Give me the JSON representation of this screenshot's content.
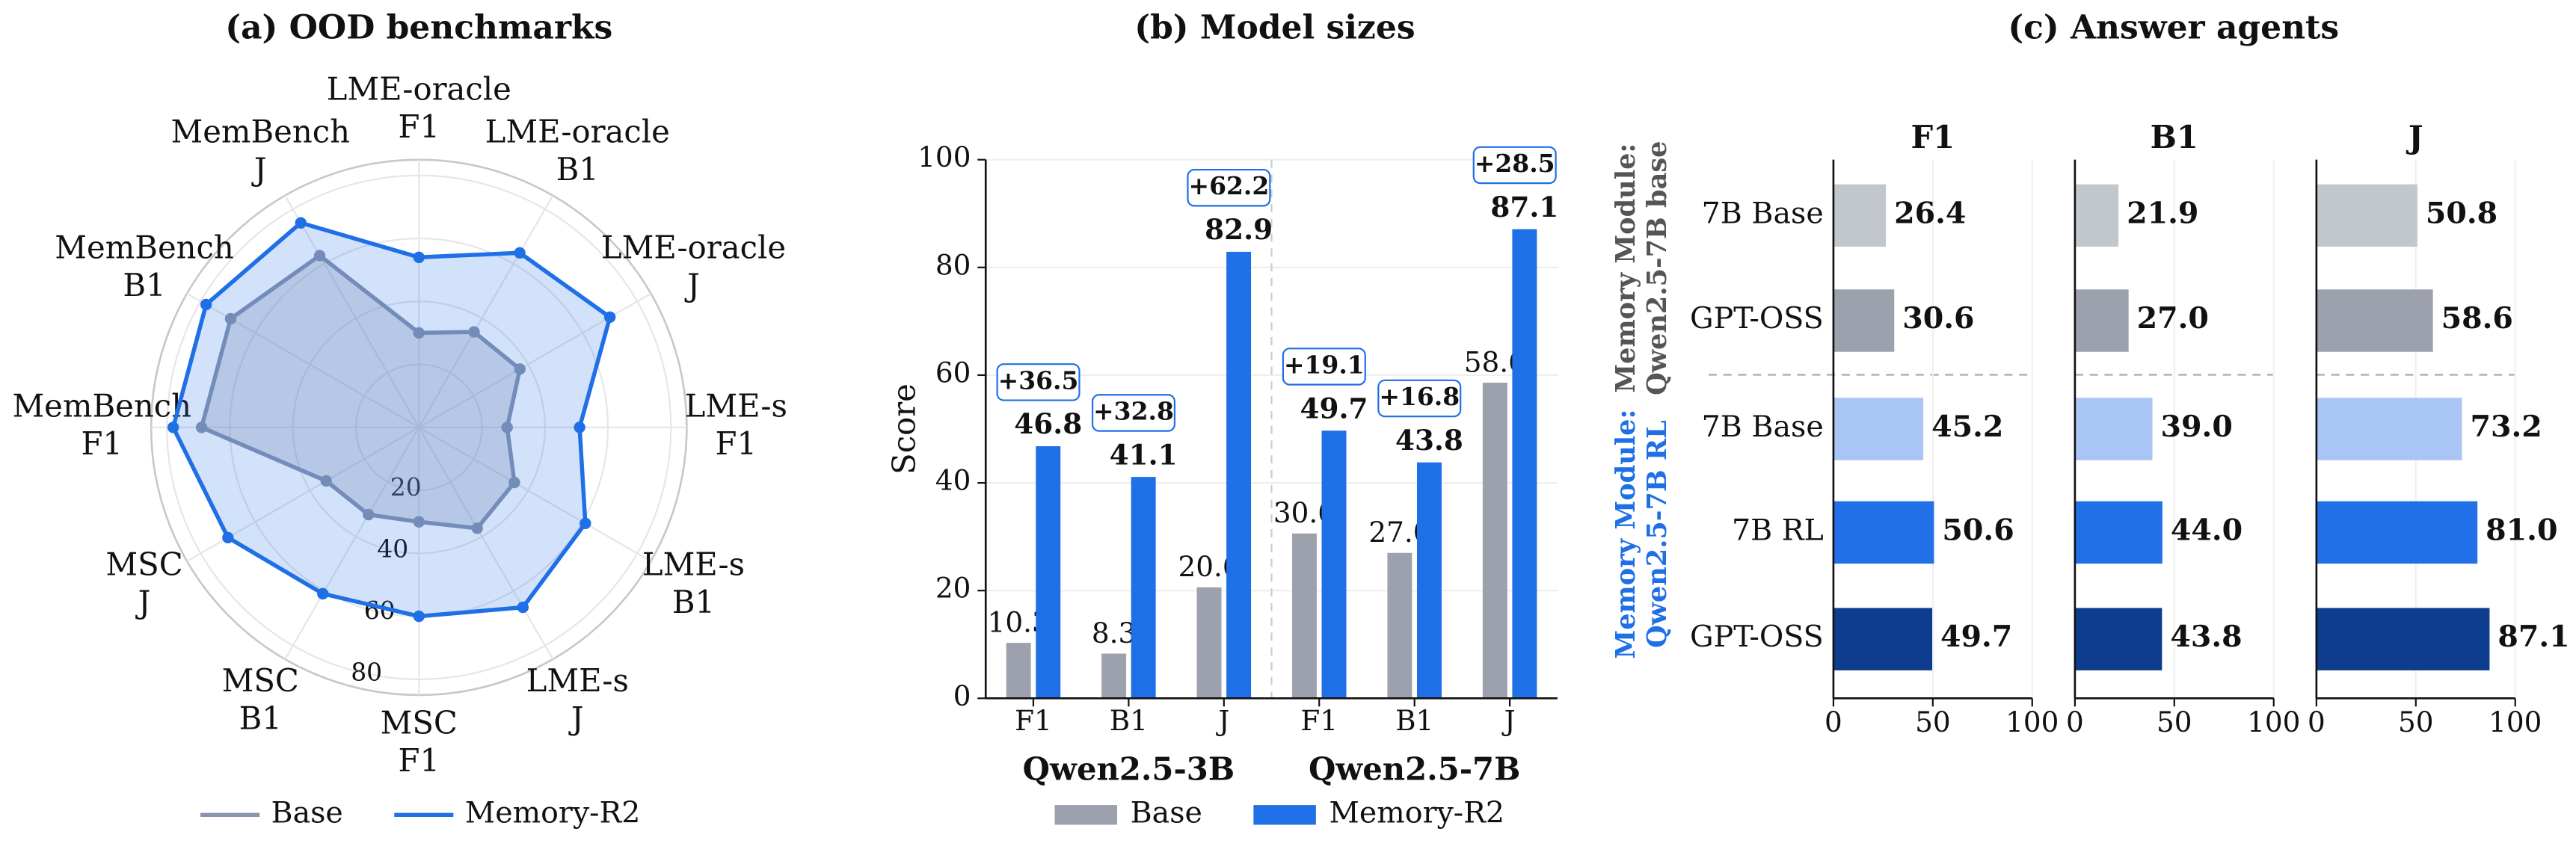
{
  "chart_data": [
    {
      "type": "radar",
      "title": "(a) OOD benchmarks",
      "axes": [
        [
          "LME-oracle",
          "F1"
        ],
        [
          "LME-oracle",
          "B1"
        ],
        [
          "LME-oracle",
          "J"
        ],
        [
          "LME-s",
          "F1"
        ],
        [
          "LME-s",
          "B1"
        ],
        [
          "LME-s",
          "J"
        ],
        [
          "MSC",
          "F1"
        ],
        [
          "MSC",
          "B1"
        ],
        [
          "MSC",
          "J"
        ],
        [
          "MemBench",
          "F1"
        ],
        [
          "MemBench",
          "B1"
        ],
        [
          "MemBench",
          "J"
        ]
      ],
      "ylim": [
        0,
        85
      ],
      "yticks": [
        20,
        40,
        60,
        80
      ],
      "series": [
        {
          "name": "Base",
          "color": "#8a94ae",
          "values": [
            30,
            35,
            37,
            28,
            35,
            37,
            30,
            32,
            34,
            69,
            69,
            63
          ]
        },
        {
          "name": "Memory-R2",
          "color": "#1f6fe6",
          "values": [
            54,
            64,
            70,
            51,
            61,
            66,
            60,
            61,
            70,
            78,
            78,
            75
          ]
        }
      ]
    },
    {
      "type": "bar",
      "title": "(b) Model sizes",
      "ylabel": "Score",
      "categories": [
        "F1",
        "B1",
        "J",
        "F1",
        "B1",
        "J"
      ],
      "groups": [
        "Qwen2.5-3B",
        "Qwen2.5-7B"
      ],
      "ylim": [
        0,
        100
      ],
      "yticks": [
        0,
        20,
        40,
        60,
        80,
        100
      ],
      "grid": true,
      "annotations": [
        "+36.5",
        "+32.8",
        "+62.2",
        "+19.1",
        "+16.8",
        "+28.5"
      ],
      "series": [
        {
          "name": "Base",
          "color": "#9ca1ad",
          "values": [
            10.3,
            8.3,
            20.6,
            30.6,
            27.0,
            58.6
          ],
          "value_labels": [
            "10.3",
            "8.3",
            "20.6",
            "30.6",
            "27.0",
            "58.6"
          ]
        },
        {
          "name": "Memory-R2",
          "color": "#1f6fe6",
          "values": [
            46.8,
            41.1,
            82.9,
            49.7,
            43.8,
            87.1
          ],
          "value_labels": [
            "46.8",
            "41.1",
            "82.9",
            "49.7",
            "43.8",
            "87.1"
          ]
        }
      ]
    },
    {
      "type": "barh",
      "title": "(c) Answer agents",
      "groups": [
        {
          "label": [
            "Memory Module:",
            "Qwen2.5-7B base"
          ],
          "color": "#555555",
          "categories": [
            "7B Base",
            "GPT-OSS"
          ]
        },
        {
          "label": [
            "Memory Module:",
            "Qwen2.5-7B RL"
          ],
          "color": "#1f6fe6",
          "categories": [
            "7B Base",
            "7B RL",
            "GPT-OSS"
          ]
        }
      ],
      "colors": [
        "#c2c6cd",
        "#9ca1ad",
        "#a9c5f5",
        "#2170e8",
        "#0e3c8e"
      ],
      "xlim": [
        0,
        100
      ],
      "xticks": [
        0,
        50,
        100
      ],
      "series": [
        {
          "name": "F1",
          "values": [
            26.4,
            30.6,
            45.2,
            50.6,
            49.7
          ],
          "value_labels": [
            "26.4",
            "30.6",
            "45.2",
            "50.6",
            "49.7"
          ]
        },
        {
          "name": "B1",
          "values": [
            21.9,
            27.0,
            39.0,
            44.0,
            43.8
          ],
          "value_labels": [
            "21.9",
            "27.0",
            "39.0",
            "44.0",
            "43.8"
          ]
        },
        {
          "name": "J",
          "values": [
            50.8,
            58.6,
            73.2,
            81.0,
            87.1
          ],
          "value_labels": [
            "50.8",
            "58.6",
            "73.2",
            "81.0",
            "87.1"
          ]
        }
      ]
    }
  ]
}
